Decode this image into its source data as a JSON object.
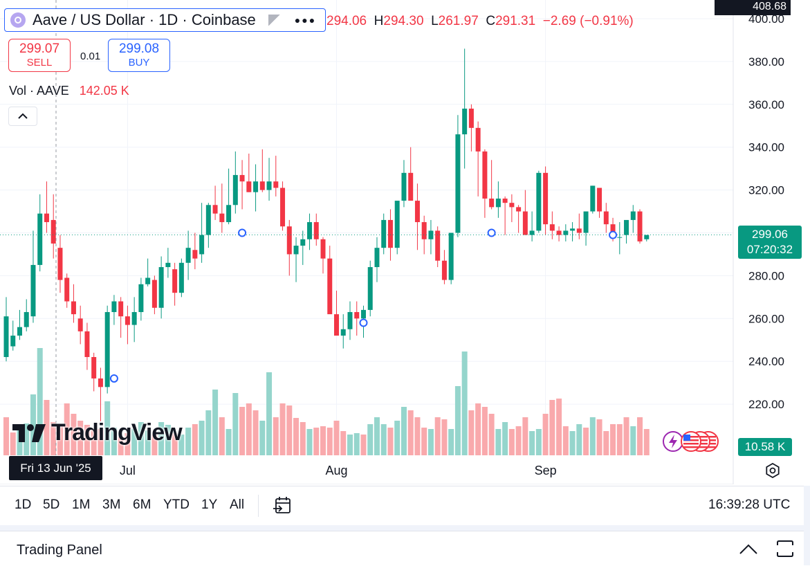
{
  "header": {
    "symbol_title": "Aave / US Dollar · 1D · Coinbase",
    "ohlc_open_value": "294.06",
    "ohlc_high_value": "294.30",
    "ohlc_low_value": "261.97",
    "ohlc_close_value": "291.31",
    "ohlc_change": "−2.69 (−0.91%)",
    "logo_icon": "aave-logo-icon",
    "flag_icon": "flag-icon",
    "more_icon": "dots-icon"
  },
  "trade": {
    "sell_price": "299.07",
    "sell_label": "SELL",
    "spread": "0.01",
    "buy_price": "299.08",
    "buy_label": "BUY"
  },
  "volume_legend": {
    "label": "Vol · AAVE",
    "value": "142.05 K"
  },
  "logo_text": "TradingView",
  "price_axis": {
    "top_partial": "400.00",
    "top_label": "408.68",
    "current_price": "299.06",
    "countdown": "07:20:32",
    "volume_label": "10.58 K"
  },
  "time_axis": {
    "crosshair_date": "Fri 13 Jun '25"
  },
  "toolbar": {
    "timeframes": [
      "1D",
      "5D",
      "1M",
      "3M",
      "6M",
      "YTD",
      "1Y",
      "All"
    ],
    "clock": "16:39:28 UTC"
  },
  "panel": {
    "title": "Trading Panel"
  },
  "colors": {
    "up": "#089981",
    "down": "#f23645",
    "accent": "#2962ff"
  },
  "chart_data": {
    "type": "candlestick",
    "title": "Aave / US Dollar · 1D · Coinbase",
    "ylim": [
      206,
      402
    ],
    "yticks": [
      220,
      240,
      260,
      280,
      300,
      320,
      340,
      360,
      380,
      400
    ],
    "ytick_labels": [
      "220.00",
      "240.00",
      "260.00",
      "280.00",
      "300.00",
      "320.00",
      "340.00",
      "360.00",
      "380.00",
      "400.00"
    ],
    "xticks": [
      {
        "label": "Jul",
        "index": 18
      },
      {
        "label": "Aug",
        "index": 49
      },
      {
        "label": "Sep",
        "index": 80
      }
    ],
    "grid": true,
    "last_price": 299.06,
    "candles": [
      [
        270,
        240,
        242,
        261
      ],
      [
        259,
        245,
        247,
        252
      ],
      [
        264,
        250,
        252,
        256
      ],
      [
        269,
        254,
        256,
        263
      ],
      [
        301,
        258,
        261,
        285
      ],
      [
        318,
        282,
        285,
        309
      ],
      [
        324,
        300,
        309,
        305
      ],
      [
        318,
        288,
        306,
        295
      ],
      [
        299,
        272,
        293,
        278
      ],
      [
        281,
        265,
        279,
        268
      ],
      [
        276,
        258,
        268,
        262
      ],
      [
        266,
        248,
        260,
        254
      ],
      [
        258,
        236,
        254,
        242
      ],
      [
        244,
        226,
        242,
        232
      ],
      [
        237,
        212,
        232,
        228
      ],
      [
        266,
        225,
        228,
        263
      ],
      [
        271,
        257,
        263,
        268
      ],
      [
        270,
        251,
        268,
        261
      ],
      [
        266,
        248,
        261,
        257
      ],
      [
        270,
        249,
        257,
        263
      ],
      [
        279,
        259,
        263,
        276
      ],
      [
        288,
        275,
        276,
        279
      ],
      [
        280,
        262,
        278,
        265
      ],
      [
        289,
        260,
        265,
        284
      ],
      [
        293,
        279,
        284,
        286
      ],
      [
        286,
        266,
        283,
        272
      ],
      [
        288,
        270,
        272,
        286
      ],
      [
        301,
        278,
        286,
        293
      ],
      [
        300,
        283,
        292,
        288
      ],
      [
        314,
        286,
        290,
        299
      ],
      [
        314,
        293,
        299,
        313
      ],
      [
        322,
        306,
        313,
        309
      ],
      [
        323,
        300,
        309,
        305
      ],
      [
        330,
        304,
        305,
        313
      ],
      [
        338,
        309,
        313,
        327
      ],
      [
        334,
        311,
        327,
        324
      ],
      [
        337,
        319,
        324,
        319
      ],
      [
        332,
        310,
        319,
        324
      ],
      [
        339,
        319,
        324,
        320
      ],
      [
        335,
        315,
        320,
        324
      ],
      [
        336,
        317,
        324,
        321
      ],
      [
        324,
        301,
        321,
        303
      ],
      [
        306,
        280,
        303,
        290
      ],
      [
        298,
        277,
        290,
        294
      ],
      [
        301,
        285,
        294,
        297
      ],
      [
        309,
        292,
        297,
        305
      ],
      [
        309,
        294,
        305,
        297
      ],
      [
        298,
        281,
        297,
        288
      ],
      [
        294,
        270,
        288,
        262
      ],
      [
        273,
        253,
        262,
        252
      ],
      [
        262,
        246,
        252,
        255
      ],
      [
        268,
        250,
        255,
        263
      ],
      [
        268,
        252,
        263,
        260
      ],
      [
        266,
        251,
        260,
        264
      ],
      [
        287,
        261,
        264,
        284
      ],
      [
        298,
        277,
        284,
        293
      ],
      [
        309,
        290,
        293,
        306
      ],
      [
        311,
        287,
        306,
        293
      ],
      [
        306,
        290,
        293,
        315
      ],
      [
        334,
        312,
        315,
        328
      ],
      [
        340,
        318,
        328,
        315
      ],
      [
        323,
        292,
        315,
        305
      ],
      [
        308,
        290,
        305,
        297
      ],
      [
        306,
        290,
        297,
        301
      ],
      [
        303,
        284,
        301,
        287
      ],
      [
        292,
        276,
        287,
        278
      ],
      [
        300,
        276,
        278,
        300
      ],
      [
        355,
        298,
        300,
        346
      ],
      [
        386,
        330,
        346,
        358
      ],
      [
        360,
        338,
        358,
        349
      ],
      [
        352,
        317,
        349,
        338
      ],
      [
        339,
        307,
        338,
        316
      ],
      [
        334,
        311,
        316,
        312
      ],
      [
        324,
        307,
        312,
        316
      ],
      [
        317,
        299,
        316,
        314
      ],
      [
        318,
        305,
        314,
        312
      ],
      [
        313,
        300,
        312,
        310
      ],
      [
        320,
        299,
        310,
        299
      ],
      [
        310,
        296,
        299,
        301
      ],
      [
        329,
        300,
        301,
        328
      ],
      [
        331,
        299,
        328,
        304
      ],
      [
        310,
        297,
        304,
        301
      ],
      [
        303,
        296,
        301,
        299
      ],
      [
        304,
        296,
        299,
        301
      ],
      [
        305,
        296,
        301,
        302
      ],
      [
        309,
        297,
        302,
        300
      ],
      [
        302,
        294,
        300,
        310
      ],
      [
        322,
        309,
        310,
        322
      ],
      [
        320,
        307,
        321,
        310
      ],
      [
        314,
        300,
        310,
        304
      ],
      [
        307,
        296,
        304,
        298
      ],
      [
        305,
        290,
        298,
        298
      ],
      [
        305,
        295,
        299,
        306
      ],
      [
        313,
        300,
        306,
        310
      ],
      [
        311,
        295,
        310,
        296
      ],
      [
        299,
        296,
        297,
        299
      ]
    ],
    "volume_unit": "K",
    "volume": [
      [
        55,
        0
      ],
      [
        33,
        0
      ],
      [
        38,
        1
      ],
      [
        46,
        1
      ],
      [
        88,
        1
      ],
      [
        155,
        1
      ],
      [
        80,
        0
      ],
      [
        48,
        0
      ],
      [
        42,
        0
      ],
      [
        75,
        0
      ],
      [
        60,
        0
      ],
      [
        50,
        0
      ],
      [
        44,
        0
      ],
      [
        38,
        0
      ],
      [
        38,
        0
      ],
      [
        78,
        1
      ],
      [
        40,
        1
      ],
      [
        27,
        0
      ],
      [
        32,
        0
      ],
      [
        38,
        1
      ],
      [
        48,
        1
      ],
      [
        36,
        1
      ],
      [
        30,
        0
      ],
      [
        48,
        1
      ],
      [
        44,
        1
      ],
      [
        32,
        0
      ],
      [
        30,
        1
      ],
      [
        40,
        1
      ],
      [
        45,
        0
      ],
      [
        50,
        1
      ],
      [
        65,
        1
      ],
      [
        95,
        1
      ],
      [
        55,
        0
      ],
      [
        38,
        1
      ],
      [
        90,
        1
      ],
      [
        70,
        0
      ],
      [
        75,
        0
      ],
      [
        65,
        0
      ],
      [
        50,
        1
      ],
      [
        120,
        1
      ],
      [
        55,
        0
      ],
      [
        75,
        0
      ],
      [
        72,
        0
      ],
      [
        54,
        0
      ],
      [
        48,
        0
      ],
      [
        38,
        1
      ],
      [
        40,
        0
      ],
      [
        42,
        0
      ],
      [
        40,
        0
      ],
      [
        50,
        0
      ],
      [
        35,
        0
      ],
      [
        30,
        1
      ],
      [
        32,
        1
      ],
      [
        30,
        0
      ],
      [
        45,
        1
      ],
      [
        55,
        1
      ],
      [
        45,
        1
      ],
      [
        40,
        0
      ],
      [
        50,
        1
      ],
      [
        70,
        1
      ],
      [
        65,
        0
      ],
      [
        55,
        0
      ],
      [
        40,
        0
      ],
      [
        38,
        1
      ],
      [
        55,
        0
      ],
      [
        52,
        0
      ],
      [
        38,
        1
      ],
      [
        100,
        1
      ],
      [
        150,
        1
      ],
      [
        65,
        0
      ],
      [
        75,
        0
      ],
      [
        70,
        0
      ],
      [
        60,
        0
      ],
      [
        38,
        1
      ],
      [
        48,
        1
      ],
      [
        38,
        0
      ],
      [
        42,
        0
      ],
      [
        55,
        0
      ],
      [
        35,
        1
      ],
      [
        38,
        1
      ],
      [
        60,
        0
      ],
      [
        80,
        0
      ],
      [
        82,
        0
      ],
      [
        42,
        0
      ],
      [
        35,
        1
      ],
      [
        45,
        1
      ],
      [
        40,
        0
      ],
      [
        55,
        1
      ],
      [
        52,
        0
      ],
      [
        35,
        0
      ],
      [
        45,
        0
      ],
      [
        45,
        0
      ],
      [
        55,
        0
      ],
      [
        42,
        1
      ],
      [
        55,
        0
      ],
      [
        38,
        0
      ]
    ]
  }
}
